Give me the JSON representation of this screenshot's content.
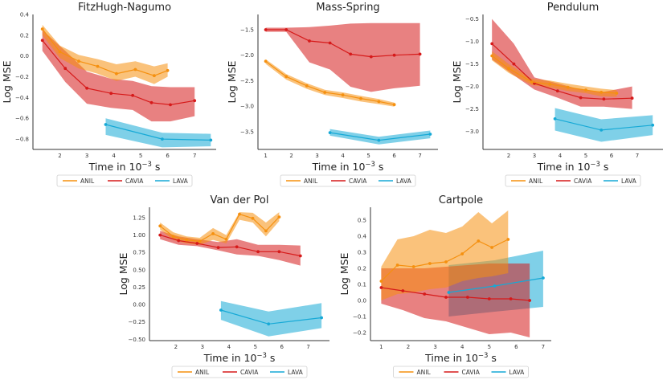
{
  "colors": {
    "ANIL": "#f5900f",
    "CAVIA": "#d61a1a",
    "LAVA": "#16a9d6"
  },
  "legend": [
    "ANIL",
    "CAVIA",
    "LAVA"
  ],
  "xlabel_prefix": "Time in 10",
  "xlabel_exponent": "−3",
  "xlabel_suffix": " s",
  "ylabel": "Log MSE",
  "chart_data": [
    {
      "type": "line",
      "title": "FitzHugh-Nagumo",
      "xlim": [
        1.0,
        7.8
      ],
      "ylim": [
        -0.9,
        0.4
      ],
      "xticks": [
        2,
        3,
        4,
        5,
        6,
        7
      ],
      "yticks": [
        0.4,
        0.2,
        0.0,
        -0.2,
        -0.4,
        -0.6,
        -0.8
      ],
      "ytick_labels": [
        "0.4",
        "0.2",
        "0.0",
        "−0.2",
        "−0.4",
        "−0.6",
        "−0.8"
      ],
      "series": [
        {
          "name": "ANIL",
          "x": [
            1.35,
            2.0,
            2.7,
            3.4,
            4.1,
            4.8,
            5.5,
            6.0
          ],
          "y": [
            0.26,
            0.04,
            -0.05,
            -0.1,
            -0.17,
            -0.13,
            -0.19,
            -0.14
          ],
          "lower": [
            0.2,
            -0.02,
            -0.12,
            -0.17,
            -0.24,
            -0.2,
            -0.27,
            -0.2
          ],
          "upper": [
            0.3,
            0.1,
            0.01,
            -0.03,
            -0.08,
            -0.05,
            -0.1,
            -0.07
          ]
        },
        {
          "name": "CAVIA",
          "x": [
            1.35,
            2.2,
            3.0,
            3.9,
            4.7,
            5.4,
            6.1,
            7.0
          ],
          "y": [
            0.15,
            -0.12,
            -0.31,
            -0.36,
            -0.38,
            -0.45,
            -0.47,
            -0.43
          ],
          "lower": [
            0.05,
            -0.25,
            -0.46,
            -0.5,
            -0.52,
            -0.63,
            -0.63,
            -0.58
          ],
          "upper": [
            0.25,
            0.05,
            -0.15,
            -0.22,
            -0.24,
            -0.29,
            -0.3,
            -0.3
          ]
        },
        {
          "name": "LAVA",
          "x": [
            3.7,
            5.8,
            7.6
          ],
          "y": [
            -0.66,
            -0.8,
            -0.81
          ],
          "lower": [
            -0.76,
            -0.88,
            -0.87
          ],
          "upper": [
            -0.6,
            -0.74,
            -0.75
          ]
        }
      ]
    },
    {
      "type": "line",
      "title": "Mass-Spring",
      "xlim": [
        0.7,
        7.7
      ],
      "ylim": [
        -3.85,
        -1.2
      ],
      "xticks": [
        1,
        2,
        3,
        4,
        5,
        6,
        7
      ],
      "yticks": [
        -1.5,
        -2.0,
        -2.5,
        -3.0,
        -3.5
      ],
      "ytick_labels": [
        "−1.5",
        "−2.0",
        "−2.5",
        "−3.0",
        "−3.5"
      ],
      "series": [
        {
          "name": "ANIL",
          "x": [
            1.0,
            1.8,
            2.6,
            3.3,
            4.0,
            4.7,
            5.4,
            6.0
          ],
          "y": [
            -2.12,
            -2.42,
            -2.6,
            -2.73,
            -2.78,
            -2.85,
            -2.91,
            -2.97
          ],
          "lower": [
            -2.17,
            -2.48,
            -2.66,
            -2.78,
            -2.84,
            -2.91,
            -2.96,
            -3.01
          ],
          "upper": [
            -2.08,
            -2.37,
            -2.55,
            -2.68,
            -2.73,
            -2.8,
            -2.86,
            -2.93
          ]
        },
        {
          "name": "CAVIA",
          "x": [
            1.0,
            1.8,
            2.7,
            3.5,
            4.3,
            5.1,
            6.0,
            7.0
          ],
          "y": [
            -1.5,
            -1.5,
            -1.72,
            -1.76,
            -1.98,
            -2.03,
            -2.0,
            -1.98
          ],
          "lower": [
            -1.54,
            -1.54,
            -2.14,
            -2.28,
            -2.62,
            -2.72,
            -2.65,
            -2.6
          ],
          "upper": [
            -1.46,
            -1.46,
            -1.45,
            -1.42,
            -1.38,
            -1.37,
            -1.37,
            -1.37
          ]
        },
        {
          "name": "LAVA",
          "x": [
            3.5,
            5.4,
            7.4
          ],
          "y": [
            -3.52,
            -3.67,
            -3.55
          ],
          "lower": [
            -3.58,
            -3.75,
            -3.63
          ],
          "upper": [
            -3.45,
            -3.6,
            -3.48
          ]
        }
      ]
    },
    {
      "type": "line",
      "title": "Pendulum",
      "xlim": [
        1.0,
        8.0
      ],
      "ylim": [
        -3.4,
        -0.4
      ],
      "xticks": [
        2,
        3,
        4,
        5,
        6,
        7
      ],
      "yticks": [
        -0.5,
        -1.0,
        -1.5,
        -2.0,
        -2.5,
        -3.0
      ],
      "ytick_labels": [
        "−0.5",
        "−1.0",
        "−1.5",
        "−2.0",
        "−2.5",
        "−3.0"
      ],
      "series": [
        {
          "name": "ANIL",
          "x": [
            1.35,
            2.0,
            2.9,
            3.6,
            4.3,
            5.0,
            5.6,
            6.2
          ],
          "y": [
            -1.32,
            -1.6,
            -1.9,
            -1.95,
            -2.02,
            -2.08,
            -2.13,
            -2.15
          ],
          "lower": [
            -1.42,
            -1.7,
            -1.97,
            -2.02,
            -2.1,
            -2.15,
            -2.22,
            -2.23
          ],
          "upper": [
            -1.22,
            -1.5,
            -1.83,
            -1.87,
            -1.94,
            -2.0,
            -2.05,
            -2.08
          ]
        },
        {
          "name": "CAVIA",
          "x": [
            1.35,
            2.2,
            3.0,
            3.9,
            4.8,
            5.7,
            6.8
          ],
          "y": [
            -1.05,
            -1.5,
            -1.93,
            -2.1,
            -2.25,
            -2.28,
            -2.26
          ],
          "lower": [
            -1.4,
            -1.75,
            -2.07,
            -2.25,
            -2.45,
            -2.45,
            -2.5
          ],
          "upper": [
            -0.5,
            -1.05,
            -1.8,
            -1.93,
            -2.07,
            -2.12,
            -2.0
          ]
        },
        {
          "name": "LAVA",
          "x": [
            3.8,
            5.6,
            7.6
          ],
          "y": [
            -2.72,
            -2.97,
            -2.86
          ],
          "lower": [
            -2.98,
            -3.23,
            -3.08
          ],
          "upper": [
            -2.48,
            -2.73,
            -2.64
          ]
        }
      ]
    },
    {
      "type": "line",
      "title": "Van der Pol",
      "xlim": [
        1.0,
        7.8
      ],
      "ylim": [
        -0.52,
        1.4
      ],
      "xticks": [
        2,
        3,
        4,
        5,
        6,
        7
      ],
      "yticks": [
        1.25,
        1.0,
        0.75,
        0.5,
        0.25,
        0.0,
        -0.25,
        -0.5
      ],
      "ytick_labels": [
        "1.25",
        "1.00",
        "0.75",
        "0.50",
        "0.25",
        "0.00",
        "−0.25",
        "−0.50"
      ],
      "series": [
        {
          "name": "ANIL",
          "x": [
            1.4,
            1.9,
            2.4,
            2.9,
            3.4,
            3.9,
            4.4,
            4.9,
            5.4,
            5.9
          ],
          "y": [
            1.13,
            0.98,
            0.93,
            0.91,
            1.02,
            0.94,
            1.3,
            1.24,
            1.06,
            1.26
          ],
          "lower": [
            1.08,
            0.93,
            0.88,
            0.86,
            0.93,
            0.88,
            1.22,
            1.18,
            0.98,
            1.2
          ],
          "upper": [
            1.18,
            1.04,
            0.98,
            0.96,
            1.1,
            1.0,
            1.33,
            1.32,
            1.18,
            1.33
          ]
        },
        {
          "name": "CAVIA",
          "x": [
            1.4,
            2.1,
            2.8,
            3.6,
            4.3,
            5.1,
            5.9,
            6.7
          ],
          "y": [
            1.0,
            0.92,
            0.88,
            0.82,
            0.83,
            0.76,
            0.76,
            0.7
          ],
          "lower": [
            0.94,
            0.86,
            0.84,
            0.78,
            0.72,
            0.7,
            0.64,
            0.56
          ],
          "upper": [
            1.06,
            0.98,
            0.94,
            0.9,
            0.94,
            0.86,
            0.86,
            0.85
          ]
        },
        {
          "name": "LAVA",
          "x": [
            3.7,
            5.5,
            7.5
          ],
          "y": [
            -0.08,
            -0.28,
            -0.19
          ],
          "lower": [
            -0.22,
            -0.46,
            -0.34
          ],
          "upper": [
            0.05,
            -0.1,
            0.02
          ]
        }
      ]
    },
    {
      "type": "line",
      "title": "Cartpole",
      "xlim": [
        0.6,
        7.3
      ],
      "ylim": [
        -0.25,
        0.58
      ],
      "xticks": [
        1,
        2,
        3,
        4,
        5,
        6,
        7
      ],
      "yticks": [
        0.5,
        0.4,
        0.3,
        0.2,
        0.1,
        0.0,
        -0.1,
        -0.2
      ],
      "ytick_labels": [
        "0.5",
        "0.4",
        "0.3",
        "0.2",
        "0.1",
        "0.0",
        "−0.1",
        "−0.2"
      ],
      "series": [
        {
          "name": "ANIL",
          "x": [
            1.0,
            1.6,
            2.2,
            2.8,
            3.4,
            4.0,
            4.6,
            5.1,
            5.7
          ],
          "y": [
            0.12,
            0.22,
            0.21,
            0.23,
            0.24,
            0.29,
            0.37,
            0.33,
            0.38
          ],
          "lower": [
            0.0,
            0.04,
            0.05,
            0.07,
            0.08,
            0.12,
            0.14,
            0.15,
            0.17
          ],
          "upper": [
            0.21,
            0.38,
            0.4,
            0.44,
            0.42,
            0.46,
            0.55,
            0.48,
            0.56
          ]
        },
        {
          "name": "CAVIA",
          "x": [
            1.0,
            1.8,
            2.6,
            3.4,
            4.2,
            5.0,
            5.8,
            6.5
          ],
          "y": [
            0.08,
            0.06,
            0.04,
            0.02,
            0.02,
            0.01,
            0.01,
            0.0
          ],
          "lower": [
            -0.02,
            -0.06,
            -0.11,
            -0.13,
            -0.17,
            -0.21,
            -0.2,
            -0.23
          ],
          "upper": [
            0.2,
            0.2,
            0.2,
            0.21,
            0.22,
            0.23,
            0.23,
            0.23
          ]
        },
        {
          "name": "LAVA",
          "x": [
            3.5,
            5.2,
            7.0
          ],
          "y": [
            0.05,
            0.09,
            0.14
          ],
          "lower": [
            -0.1,
            -0.07,
            -0.04
          ],
          "upper": [
            0.22,
            0.25,
            0.31
          ]
        }
      ]
    }
  ]
}
